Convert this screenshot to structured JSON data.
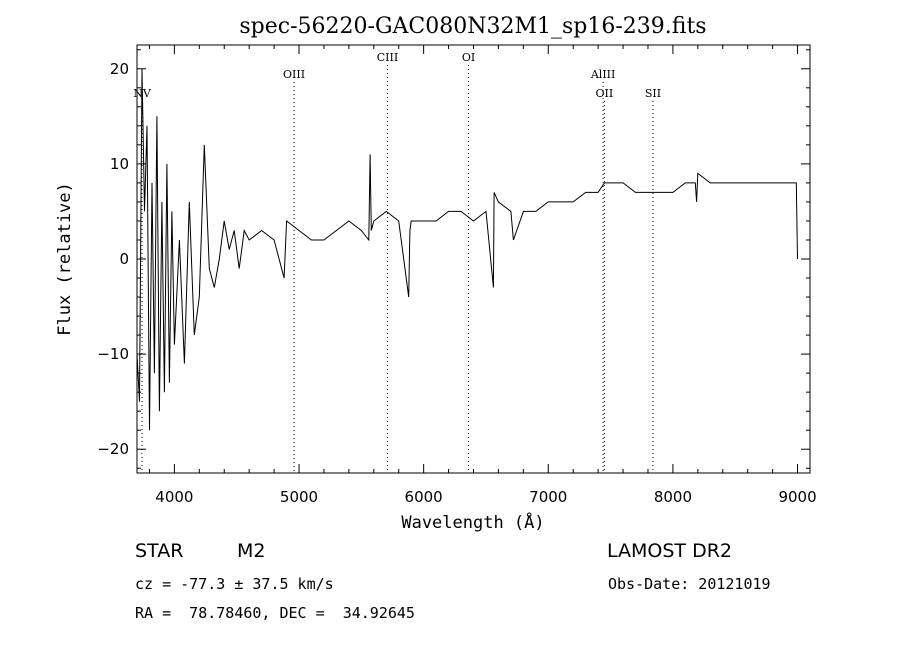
{
  "chart_data": {
    "type": "line",
    "title": "spec-56220-GAC080N32M1_sp16-239.fits",
    "xlabel": "Wavelength (Å)",
    "ylabel": "Flux (relative)",
    "xlim": [
      3700,
      9100
    ],
    "ylim": [
      -22.5,
      22.5
    ],
    "xticks": [
      4000,
      5000,
      6000,
      7000,
      8000,
      9000
    ],
    "yticks": [
      -20,
      -10,
      0,
      10,
      20
    ],
    "grid": false,
    "lines": [
      {
        "label": "NV",
        "x": 3740,
        "row": 2
      },
      {
        "label": "OIII",
        "x": 4960,
        "row": 1
      },
      {
        "label": "CIII",
        "x": 5710,
        "row": 0
      },
      {
        "label": "OI",
        "x": 6360,
        "row": 0
      },
      {
        "label": "AlIII",
        "x": 7440,
        "row": 1
      },
      {
        "label": "OII",
        "x": 7450,
        "row": 2
      },
      {
        "label": "SII",
        "x": 7840,
        "row": 2
      }
    ],
    "series": [
      {
        "x": [
          3700,
          3720,
          3740,
          3760,
          3780,
          3800,
          3820,
          3840,
          3860,
          3880,
          3900,
          3920,
          3940,
          3960,
          3980,
          4000,
          4040,
          4080,
          4120,
          4160,
          4200,
          4240,
          4280,
          4320,
          4360,
          4400,
          4440,
          4480,
          4520,
          4560,
          4600,
          4700,
          4800,
          4880,
          4900,
          5000,
          5100,
          5200,
          5300,
          5400,
          5500,
          5560,
          5570,
          5580,
          5600,
          5700,
          5800,
          5880,
          5890,
          5900,
          6000,
          6100,
          6200,
          6300,
          6400,
          6500,
          6560,
          6565,
          6600,
          6700,
          6720,
          6800,
          6900,
          7000,
          7100,
          7200,
          7300,
          7400,
          7450,
          7500,
          7600,
          7700,
          7800,
          7900,
          8000,
          8100,
          8180,
          8190,
          8200,
          8300,
          8400,
          8500,
          8600,
          8700,
          8800,
          8900,
          8960,
          8990,
          9000
        ],
        "y": [
          -10,
          -15,
          20,
          5,
          14,
          -18,
          8,
          -12,
          15,
          -16,
          6,
          -14,
          10,
          -13,
          5,
          -9,
          2,
          -11,
          6,
          -8,
          -4,
          12,
          -1,
          -3,
          0,
          4,
          1,
          3,
          -1,
          3,
          2,
          3,
          2,
          -2,
          4,
          3,
          2,
          2,
          3,
          4,
          3,
          2,
          11,
          3,
          4,
          5,
          4,
          -4,
          3,
          4,
          4,
          4,
          5,
          5,
          4,
          5,
          -3,
          7,
          6,
          5,
          2,
          5,
          5,
          6,
          6,
          6,
          7,
          7,
          8,
          8,
          8,
          7,
          7,
          7,
          7,
          8,
          8,
          6,
          9,
          8,
          8,
          8,
          8,
          8,
          8,
          8,
          8,
          8,
          0
        ]
      }
    ]
  },
  "footer": {
    "object_type": "STAR",
    "subclass": "M2",
    "redshift": "cz = -77.3 ± 37.5 km/s",
    "coords": "RA =  78.78460, DEC =  34.92645",
    "survey": "LAMOST DR2",
    "obs_date": "Obs-Date: 20121019"
  }
}
